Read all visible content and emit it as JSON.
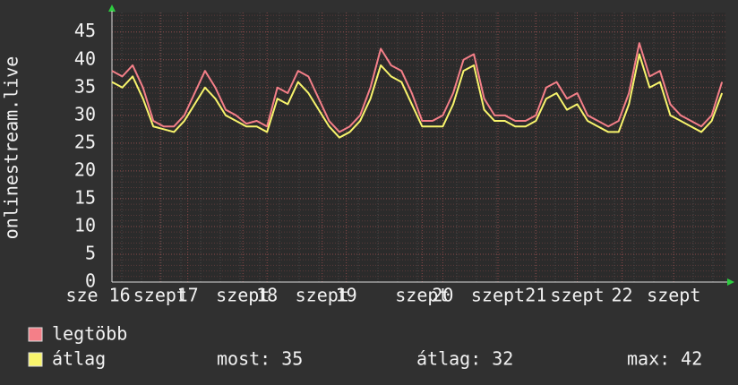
{
  "chart_data": {
    "type": "line",
    "y_axis_label": "onlinestream.live",
    "x": [
      0,
      3,
      6,
      9,
      12,
      15,
      18,
      21,
      24,
      27,
      30,
      33,
      36,
      39,
      42,
      45,
      48,
      51,
      54,
      57,
      60,
      63,
      66,
      69,
      72,
      75,
      78,
      81,
      84,
      87,
      90,
      93,
      96,
      99,
      102,
      105,
      108,
      111,
      114,
      117,
      120,
      123,
      126,
      129,
      132,
      135,
      138,
      141,
      144,
      147,
      150,
      153,
      156,
      159,
      162,
      165,
      168,
      171,
      174,
      177
    ],
    "xlim": [
      0,
      178
    ],
    "xticks": [
      {
        "value": -4,
        "label": "sze 16"
      },
      {
        "value": 14,
        "label": "szept"
      },
      {
        "value": 22,
        "label": "17"
      },
      {
        "value": 38,
        "label": "szept"
      },
      {
        "value": 45,
        "label": "18"
      },
      {
        "value": 61,
        "label": "szept"
      },
      {
        "value": 68,
        "label": "19"
      },
      {
        "value": 90,
        "label": "szept"
      },
      {
        "value": 96,
        "label": "20"
      },
      {
        "value": 112,
        "label": "szept"
      },
      {
        "value": 123,
        "label": "21"
      },
      {
        "value": 135,
        "label": "szept"
      },
      {
        "value": 148,
        "label": "22"
      },
      {
        "value": 163,
        "label": "szept"
      }
    ],
    "ylim": [
      0,
      48.5
    ],
    "yticks": [
      0,
      5,
      10,
      15,
      20,
      25,
      30,
      35,
      40,
      45
    ],
    "grid": true,
    "series": [
      {
        "name": "legtöbb",
        "color": "#f47f88",
        "values": [
          38,
          37,
          39,
          35,
          29,
          28,
          28,
          30,
          34,
          38,
          35,
          31,
          30,
          28.5,
          29,
          28,
          35,
          34,
          38,
          37,
          33,
          29,
          27,
          28,
          30,
          35,
          42,
          39,
          38,
          34,
          29,
          29,
          30,
          34,
          40,
          41,
          33,
          30,
          30,
          29,
          29,
          30,
          35,
          36,
          33,
          34,
          30,
          29,
          28,
          29,
          34,
          43,
          37,
          38,
          32,
          30,
          29,
          28,
          30,
          36
        ]
      },
      {
        "name": "átlag",
        "color": "#f8f46c",
        "values": [
          36,
          35,
          37,
          33,
          28,
          27.5,
          27,
          29,
          32,
          35,
          33,
          30,
          29,
          28,
          28,
          27,
          33,
          32,
          36,
          34,
          31,
          28,
          26,
          27,
          29,
          33,
          39,
          37,
          36,
          32,
          28,
          28,
          28,
          32,
          38,
          39,
          31,
          29,
          29,
          28,
          28,
          29,
          33,
          34,
          31,
          32,
          29,
          28,
          27,
          27,
          32,
          41,
          35,
          36,
          30,
          29,
          28,
          27,
          29,
          34
        ]
      }
    ],
    "stats": [
      {
        "label": "most:",
        "value": 35
      },
      {
        "label": "átlag:",
        "value": 32
      },
      {
        "label": "max:",
        "value": 42
      }
    ]
  }
}
